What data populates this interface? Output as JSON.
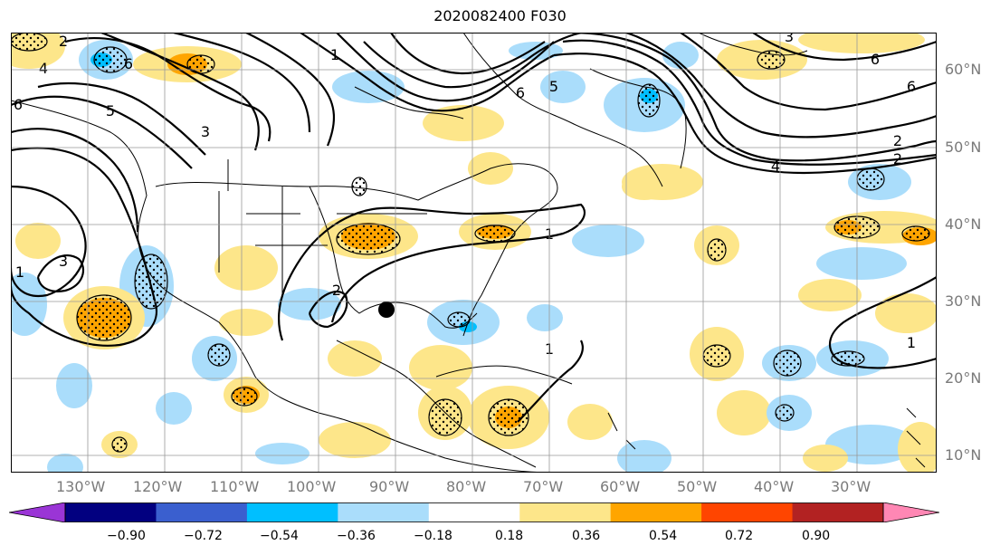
{
  "title": "2020082400 F030",
  "lon_labels": [
    "130°W",
    "120°W",
    "110°W",
    "100°W",
    "90°W",
    "80°W",
    "70°W",
    "60°W",
    "50°W",
    "40°W",
    "30°W"
  ],
  "lat_labels": [
    "60°N",
    "50°N",
    "40°N",
    "30°N",
    "20°N",
    "10°N"
  ],
  "colorbar": {
    "ticks": [
      "−0.90",
      "−0.72",
      "−0.54",
      "−0.36",
      "−0.18",
      "0.18",
      "0.36",
      "0.54",
      "0.72",
      "0.90"
    ],
    "colors": [
      "#9a35d6",
      "#020080",
      "#3a5fcf",
      "#00bfff",
      "#aaddfb",
      "#ffffff",
      "#fde68a",
      "#ffa500",
      "#ff4500",
      "#b22222",
      "#ff87b4"
    ]
  },
  "contour_labels": [
    "1",
    "2",
    "3",
    "4",
    "5",
    "6"
  ],
  "marker": "storm-center-dot"
}
